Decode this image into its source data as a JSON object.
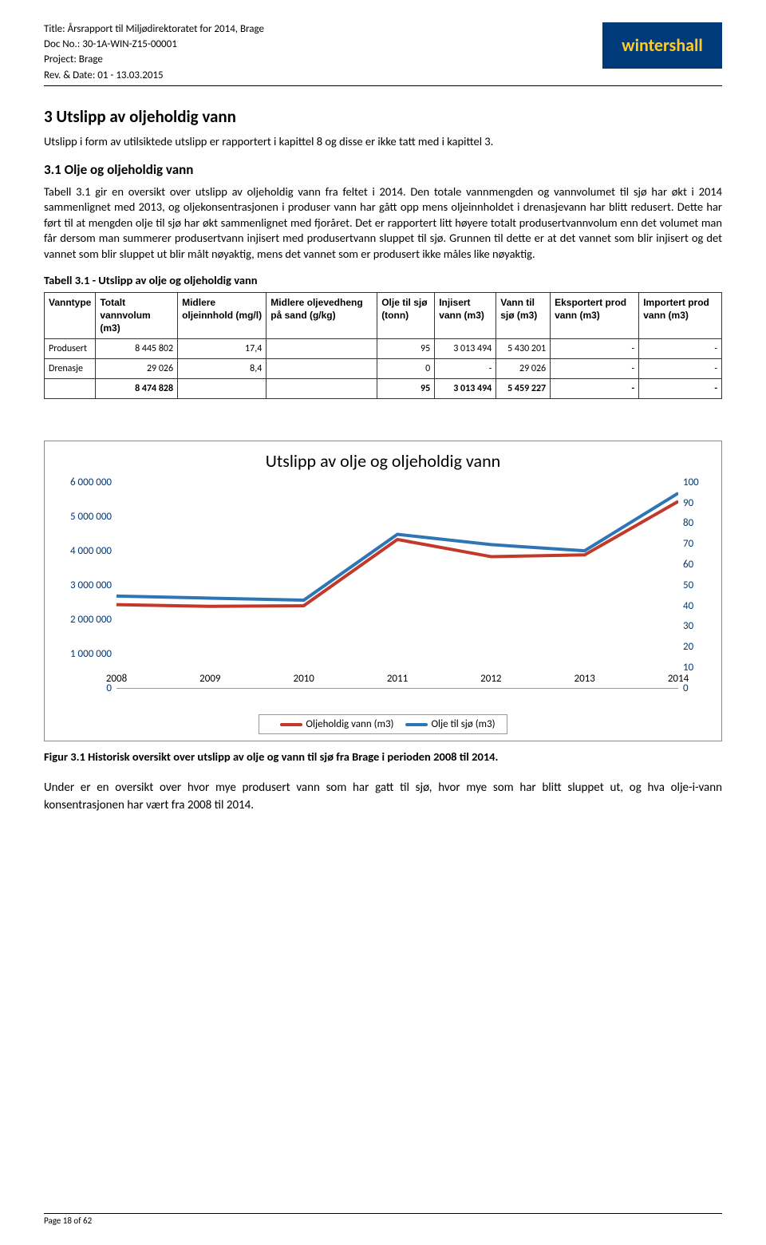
{
  "header": {
    "title_label": "Title:",
    "title": "Årsrapport til Miljødirektoratet for 2014, Brage",
    "doc_label": "Doc No.:",
    "doc": "30-1A-WIN-Z15-00001",
    "project_label": "Project:",
    "project": "Brage",
    "rev_label": "Rev. & Date:",
    "rev": "01 - 13.03.2015",
    "logo_text": "wintershall"
  },
  "section": {
    "h1": "3  Utslipp av oljeholdig vann",
    "intro": "Utslipp i form av utilsiktede utslipp er rapportert i kapittel 8 og disse er ikke tatt med i kapittel 3.",
    "h2": "3.1  Olje og oljeholdig vann",
    "body": "Tabell 3.1 gir en oversikt over utslipp av oljeholdig vann fra feltet i 2014. Den totale vannmengden og vannvolumet til sjø har økt i 2014 sammenlignet med 2013, og oljekonsentrasjonen i produser vann har gått opp mens oljeinnholdet i drenasjevann har blitt redusert. Dette har ført til at mengden olje til sjø har økt sammenlignet med fjoråret. Det er rapportert litt høyere totalt produsertvannvolum enn det volumet man får dersom man summerer produsertvann injisert med produsertvann sluppet til sjø. Grunnen til dette er at det vannet som blir injisert og det vannet som blir sluppet ut blir målt nøyaktig, mens det vannet som er produsert ikke måles like nøyaktig."
  },
  "table": {
    "caption": "Tabell 3.1 - Utslipp av olje og oljeholdig vann",
    "columns": [
      "Vanntype",
      "Totalt vannvolum (m3)",
      "Midlere oljeinnhold (mg/l)",
      "Midlere oljevedheng på sand (g/kg)",
      "Olje til sjø (tonn)",
      "Injisert vann (m3)",
      "Vann til sjø (m3)",
      "Eksportert prod vann (m3)",
      "Importert prod vann (m3)"
    ],
    "rows": [
      [
        "Produsert",
        "8 445 802",
        "17,4",
        "",
        "95",
        "3 013 494",
        "5 430 201",
        "-",
        "-"
      ],
      [
        "Drenasje",
        "29 026",
        "8,4",
        "",
        "0",
        "-",
        "29 026",
        "-",
        "-"
      ],
      [
        "",
        "8 474 828",
        "",
        "",
        "95",
        "3 013 494",
        "5 459 227",
        "-",
        "-"
      ]
    ]
  },
  "chart": {
    "title": "Utslipp av olje og oljeholdig vann",
    "type": "line-dual-axis",
    "x_categories": [
      "2008",
      "2009",
      "2010",
      "2011",
      "2012",
      "2013",
      "2014"
    ],
    "y_left": {
      "min": 0,
      "max": 6000000,
      "step": 1000000,
      "ticks": [
        "0",
        "1 000 000",
        "2 000 000",
        "3 000 000",
        "4 000 000",
        "5 000 000",
        "6 000 000"
      ],
      "color": "#003a78"
    },
    "y_right": {
      "min": 0,
      "max": 100,
      "step": 10,
      "ticks": [
        "0",
        "10",
        "20",
        "30",
        "40",
        "50",
        "60",
        "70",
        "80",
        "90",
        "100"
      ],
      "color": "#003a78"
    },
    "series": [
      {
        "name": "Oljeholdig vann (m3)",
        "axis": "left",
        "color": "#c0392b",
        "line_width": 4,
        "values": [
          2450000,
          2400000,
          2420000,
          4350000,
          3850000,
          3900000,
          5459000
        ]
      },
      {
        "name": "Olje til sjø (m3)",
        "axis": "right",
        "color": "#2e75b6",
        "line_width": 4,
        "values": [
          45,
          44,
          43,
          75,
          70,
          67,
          95
        ]
      }
    ],
    "legend_labels": [
      "Oljeholdig vann (m3)",
      "Olje til sjø (m3)"
    ],
    "background_color": "#ffffff",
    "border_color": "#8a8a8a"
  },
  "figure_caption": "Figur 3.1 Historisk oversikt over utslipp av olje og vann til sjø fra Brage i perioden 2008 til 2014.",
  "footer_text": "Under er en oversikt over hvor mye produsert vann som har gatt til sjø, hvor mye som har blitt sluppet ut, og hva olje-i-vann konsentrasjonen har vært fra 2008 til 2014.",
  "page_footer": "Page 18 of 62"
}
